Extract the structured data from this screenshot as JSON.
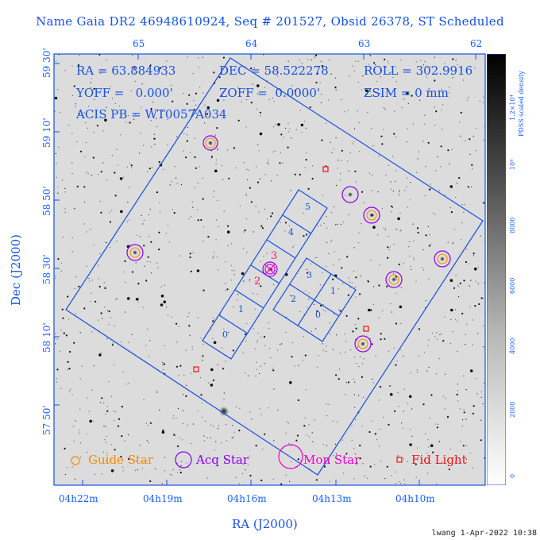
{
  "title": "Name Gaia DR2 46948610924, Seq # 201527, Obsid 26378, ST Scheduled",
  "info": {
    "ra": "RA = 63.884933",
    "dec": "DEC = 58.522278",
    "roll": "ROLL = 302.9916",
    "yoff": "YOFF =   0.000'",
    "zoff": "ZOFF =  0.0000'",
    "zsim": "ZSIM = 0 mm",
    "acis": "ACIS PB = WT0057A034"
  },
  "axes": {
    "xlabel": "RA (J2000)",
    "ylabel": "Dec (J2000)",
    "x_bottom_ticks": [
      "04h22m",
      "04h19m",
      "04h16m",
      "04h13m",
      "04h10m"
    ],
    "x_top_ticks": [
      "65",
      "64",
      "63",
      "62"
    ],
    "y_ticks": [
      "59 30'",
      "59 10'",
      "58 50'",
      "58 30'",
      "58 10'",
      "57 50'"
    ]
  },
  "colorbar": {
    "label": "PDSS scaled density",
    "ticks": [
      "0",
      "2000",
      "4000",
      "6000",
      "8000",
      "10⁴",
      "1.2×10⁴"
    ]
  },
  "chips": {
    "s_array": [
      "0",
      "1",
      "2",
      "3",
      "4",
      "5"
    ],
    "i_array": [
      "0",
      "1",
      "2",
      "3"
    ]
  },
  "stars": {
    "mon_labels": [
      "2",
      "3"
    ]
  },
  "legend": {
    "guide": "Guide Star",
    "acq": "Acq Star",
    "mon": "Mon Star",
    "fid": "Fid Light",
    "colors": {
      "guide": "#ff8800",
      "acq": "#8800ee",
      "mon": "#ee00cc",
      "fid": "#ee1111",
      "overlay": "#1650e6"
    }
  },
  "footer": "lwang  1-Apr-2022 10:38"
}
